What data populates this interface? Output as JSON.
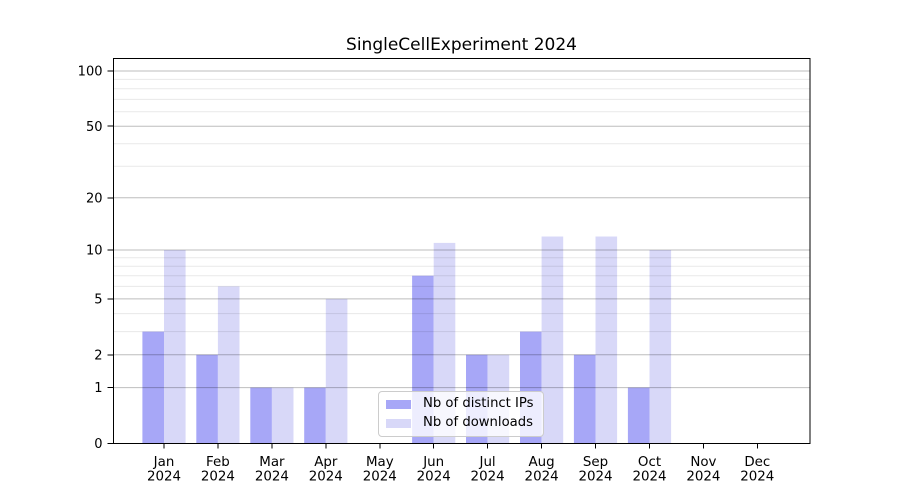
{
  "title": "SingleCellExperiment 2024",
  "chart_data": {
    "type": "bar",
    "title": "SingleCellExperiment 2024",
    "categories": [
      "Jan",
      "Feb",
      "Mar",
      "Apr",
      "May",
      "Jun",
      "Jul",
      "Aug",
      "Sep",
      "Oct",
      "Nov",
      "Dec"
    ],
    "year_label": "2024",
    "series": [
      {
        "name": "Nb of distinct IPs",
        "color": "#a7a7f7",
        "values": [
          3,
          2,
          1,
          1,
          0,
          7,
          2,
          3,
          2,
          1,
          0,
          0
        ]
      },
      {
        "name": "Nb of downloads",
        "color": "#d8d8f8",
        "values": [
          10,
          6,
          1,
          5,
          0,
          11,
          2,
          12,
          12,
          10,
          0,
          0
        ]
      }
    ],
    "y_scale": "log10(1+value)",
    "y_ticks": [
      0,
      1,
      2,
      5,
      10,
      20,
      50,
      100
    ],
    "y_minor_gridlines": [
      3,
      4,
      6,
      7,
      8,
      9,
      30,
      40,
      60,
      70,
      80,
      90
    ],
    "ylim": [
      0,
      116
    ],
    "grid": "horizontal",
    "legend_position": "lower center"
  },
  "colors": {
    "major_grid": "rgba(0,0,0,0.26)",
    "minor_grid": "rgba(0,0,0,0.09)",
    "axis": "#000000",
    "legend_border": "#cccccc",
    "text": "#000000"
  }
}
